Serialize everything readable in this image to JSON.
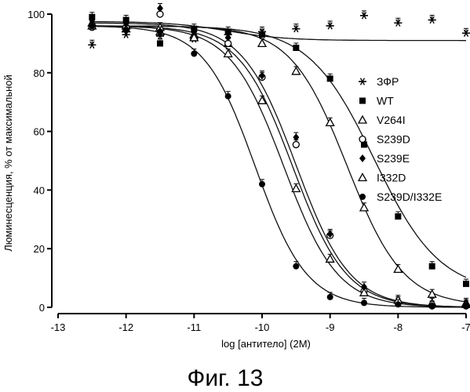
{
  "chart_data": {
    "type": "scatter",
    "xlabel": "log [антитело] (2М)",
    "ylabel": "Люминесценция, % от максимальной",
    "xlim": [
      -13,
      -7
    ],
    "ylim": [
      0,
      100
    ],
    "xticks": [
      -13,
      -12,
      -11,
      -10,
      -9,
      -8,
      -7
    ],
    "yticks": [
      0,
      20,
      40,
      60,
      80,
      100
    ],
    "legend_position": "right",
    "series": [
      {
        "name": "ЗФР",
        "marker": "asterisk",
        "x": [
          -12.5,
          -12,
          -11.5,
          -11,
          -10.5,
          -10,
          -9.5,
          -9,
          -8.5,
          -8,
          -7.5,
          -7
        ],
        "y": [
          89.5,
          93,
          92.5,
          91.5,
          93,
          94,
          95,
          96,
          99.5,
          97,
          98,
          93.5
        ],
        "fit": {
          "bottom": 91,
          "top": 97.5,
          "logec50": -10.5,
          "hill": 1
        }
      },
      {
        "name": "WT",
        "marker": "square-filled",
        "x": [
          -12.5,
          -12,
          -11.5,
          -11,
          -10.5,
          -10,
          -9.5,
          -9,
          -8.5,
          -8,
          -7.5,
          -7
        ],
        "y": [
          99,
          98,
          90,
          95,
          94,
          93,
          88.5,
          78,
          55.5,
          31,
          14,
          8
        ],
        "fit": {
          "bottom": 5,
          "top": 96,
          "logec50": -8.35,
          "hill": 0.9
        }
      },
      {
        "name": "V264I",
        "marker": "triangle-open",
        "x": [
          -12.5,
          -12,
          -11.5,
          -11,
          -10.5,
          -10,
          -9.5,
          -9,
          -8.5,
          -8,
          -7.5,
          -7
        ],
        "y": [
          97,
          96,
          95.5,
          93,
          90,
          90,
          80.5,
          63,
          34,
          13,
          4.5,
          1.5
        ],
        "fit": {
          "bottom": 0.5,
          "top": 96,
          "logec50": -8.75,
          "hill": 1.05
        }
      },
      {
        "name": "S239D",
        "marker": "circle-open",
        "x": [
          -12.5,
          -12,
          -11.5,
          -11,
          -10.5,
          -10,
          -9.5,
          -9,
          -8.5,
          -8,
          -7.5,
          -7
        ],
        "y": [
          95.5,
          95.5,
          100,
          92,
          90,
          78.5,
          55.5,
          24.5,
          5.5,
          1.5,
          0.5,
          0.5
        ],
        "fit": {
          "bottom": 0,
          "top": 96,
          "logec50": -9.55,
          "hill": 1.1
        }
      },
      {
        "name": "S239E",
        "marker": "diamond-filled",
        "x": [
          -12.5,
          -12,
          -11.5,
          -11,
          -10.5,
          -10,
          -9.5,
          -9,
          -8.5,
          -8,
          -7.5,
          -7
        ],
        "y": [
          98,
          97,
          102,
          94,
          92,
          79,
          58,
          25,
          7,
          2,
          0.5,
          0.5
        ],
        "fit": {
          "bottom": 0,
          "top": 97,
          "logec50": -9.5,
          "hill": 1.1
        }
      },
      {
        "name": "I332D",
        "marker": "triangle-open",
        "x": [
          -12.5,
          -12,
          -11.5,
          -11,
          -10.5,
          -10,
          -9.5,
          -9,
          -8.5,
          -8,
          -7.5,
          -7
        ],
        "y": [
          96,
          95,
          94,
          92,
          86.5,
          70.5,
          40.5,
          16.5,
          5,
          2.5,
          1.5,
          1
        ],
        "fit": {
          "bottom": 0,
          "top": 96,
          "logec50": -9.68,
          "hill": 1.1
        }
      },
      {
        "name": "S239D/I332E",
        "marker": "circle-filled",
        "x": [
          -12.5,
          -12,
          -11.5,
          -11,
          -10.5,
          -10,
          -9.5,
          -9,
          -8.5,
          -8,
          -7.5,
          -7
        ],
        "y": [
          96,
          94.5,
          94,
          86.5,
          72,
          42,
          14,
          3.5,
          1.5,
          1,
          0.5,
          0.5
        ],
        "fit": {
          "bottom": 0,
          "top": 96,
          "logec50": -10.1,
          "hill": 1.15
        }
      }
    ]
  },
  "caption": "Фиг. 13"
}
